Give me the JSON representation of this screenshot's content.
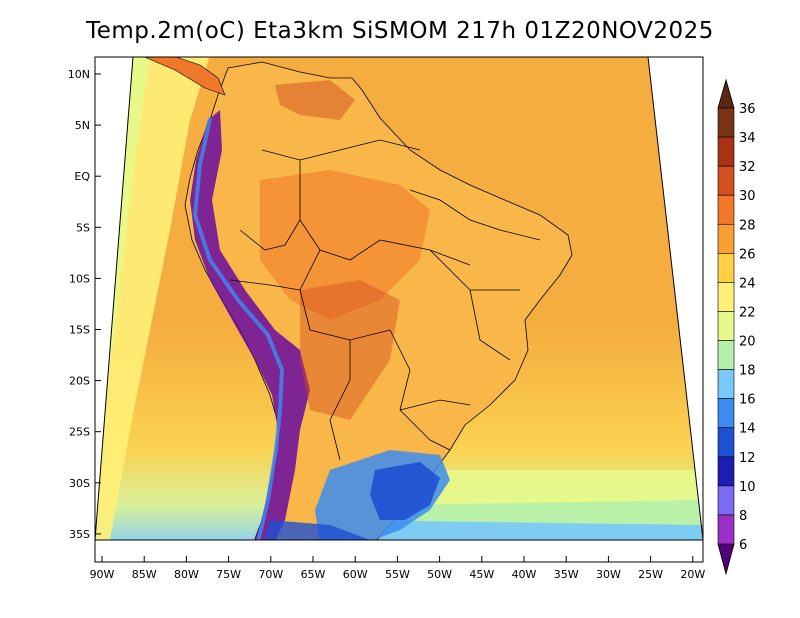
{
  "title": "Temp.2m(oC) Eta3km SiSMOM 217h 01Z20NOV2025",
  "lat_labels": [
    "10N",
    "5N",
    "EQ",
    "5S",
    "10S",
    "15S",
    "20S",
    "25S",
    "30S",
    "35S"
  ],
  "lon_labels": [
    "90W",
    "85W",
    "80W",
    "75W",
    "70W",
    "65W",
    "60W",
    "55W",
    "50W",
    "45W",
    "40W",
    "35W",
    "30W",
    "25W",
    "20W"
  ],
  "colorbar": {
    "labels": [
      "6",
      "8",
      "10",
      "12",
      "14",
      "16",
      "18",
      "20",
      "22",
      "24",
      "26",
      "28",
      "30",
      "32",
      "34",
      "36"
    ],
    "colors": [
      "#6a0aa0",
      "#9a30c8",
      "#7a6cf0",
      "#1e1eb4",
      "#1e50d2",
      "#3c8cf0",
      "#78c8fa",
      "#b4f0aa",
      "#e6fa8c",
      "#fff078",
      "#ffd046",
      "#faa032",
      "#f07828",
      "#d2501e",
      "#aa3214",
      "#783214"
    ],
    "under_color": "#50007a",
    "over_color": "#5a2810"
  },
  "map": {
    "ocean_color": "#f5ad3f",
    "land_color": "#f9b74a"
  }
}
